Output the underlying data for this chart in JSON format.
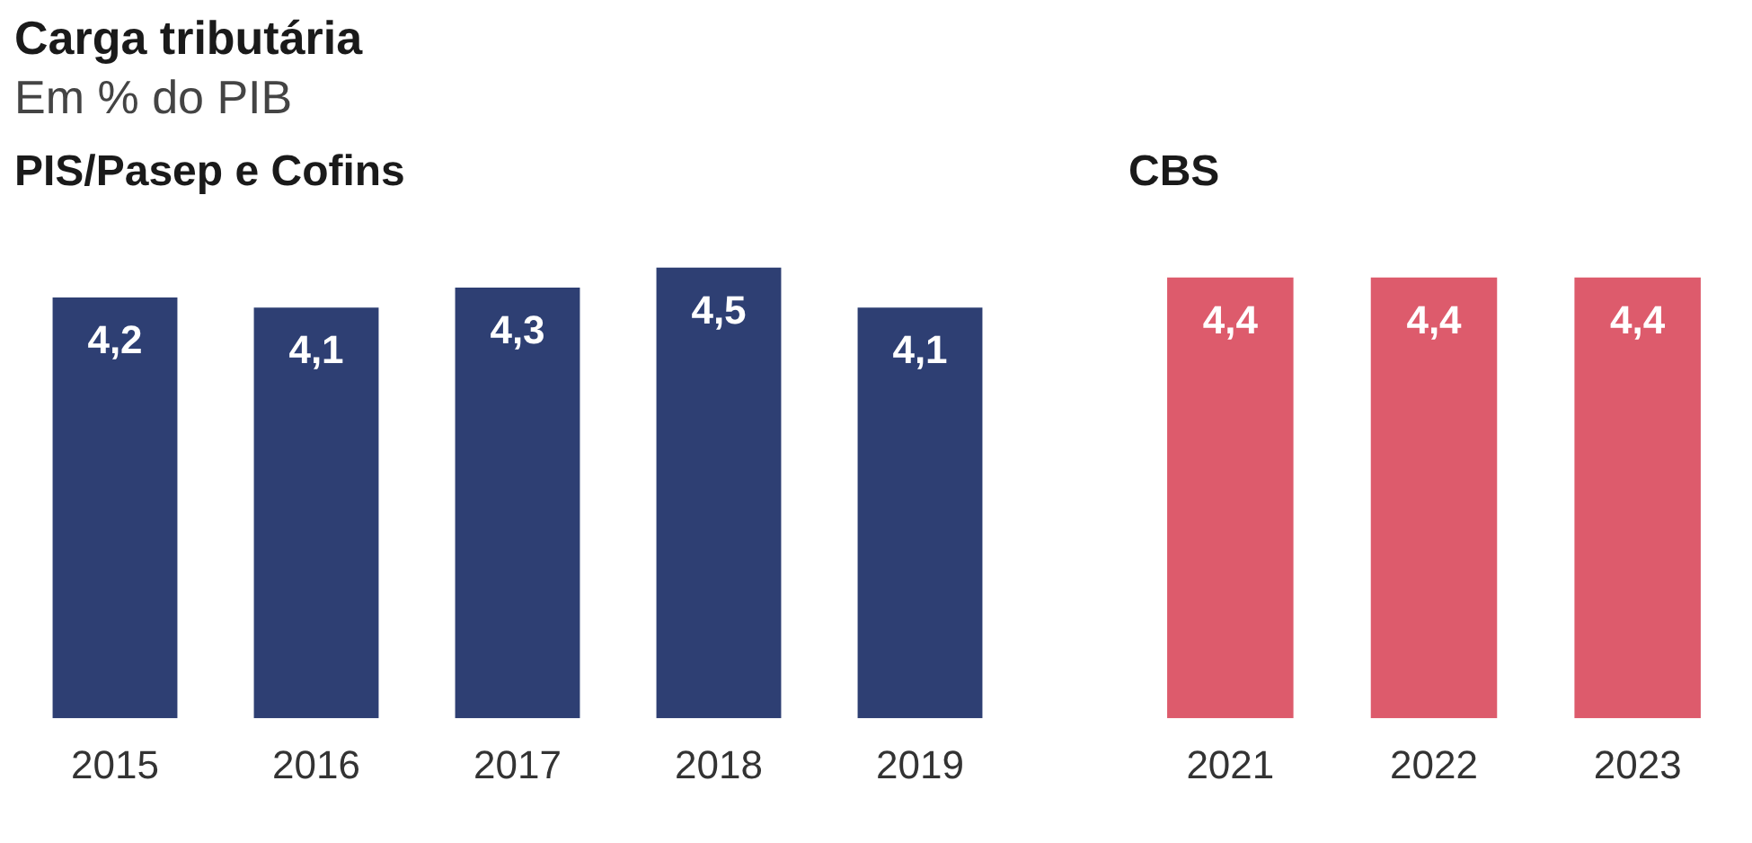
{
  "chart_data": [
    {
      "type": "other",
      "title": "Carga tributária",
      "subtitle": "Em % do PIB"
    },
    {
      "type": "bar",
      "title": "PIS/Pasep e Cofins",
      "categories": [
        "2015",
        "2016",
        "2017",
        "2018",
        "2019"
      ],
      "values": [
        4.2,
        4.1,
        4.3,
        4.5,
        4.1
      ],
      "value_labels": [
        "4,2",
        "4,1",
        "4,3",
        "4,5",
        "4,1"
      ],
      "color": "#2e3f73",
      "grid": false,
      "legend": false
    },
    {
      "type": "bar",
      "title": "CBS",
      "categories": [
        "2021",
        "2022",
        "2023"
      ],
      "values": [
        4.4,
        4.4,
        4.4
      ],
      "value_labels": [
        "4,4",
        "4,4",
        "4,4"
      ],
      "color": "#dd5b6c",
      "grid": false,
      "legend": false
    }
  ]
}
